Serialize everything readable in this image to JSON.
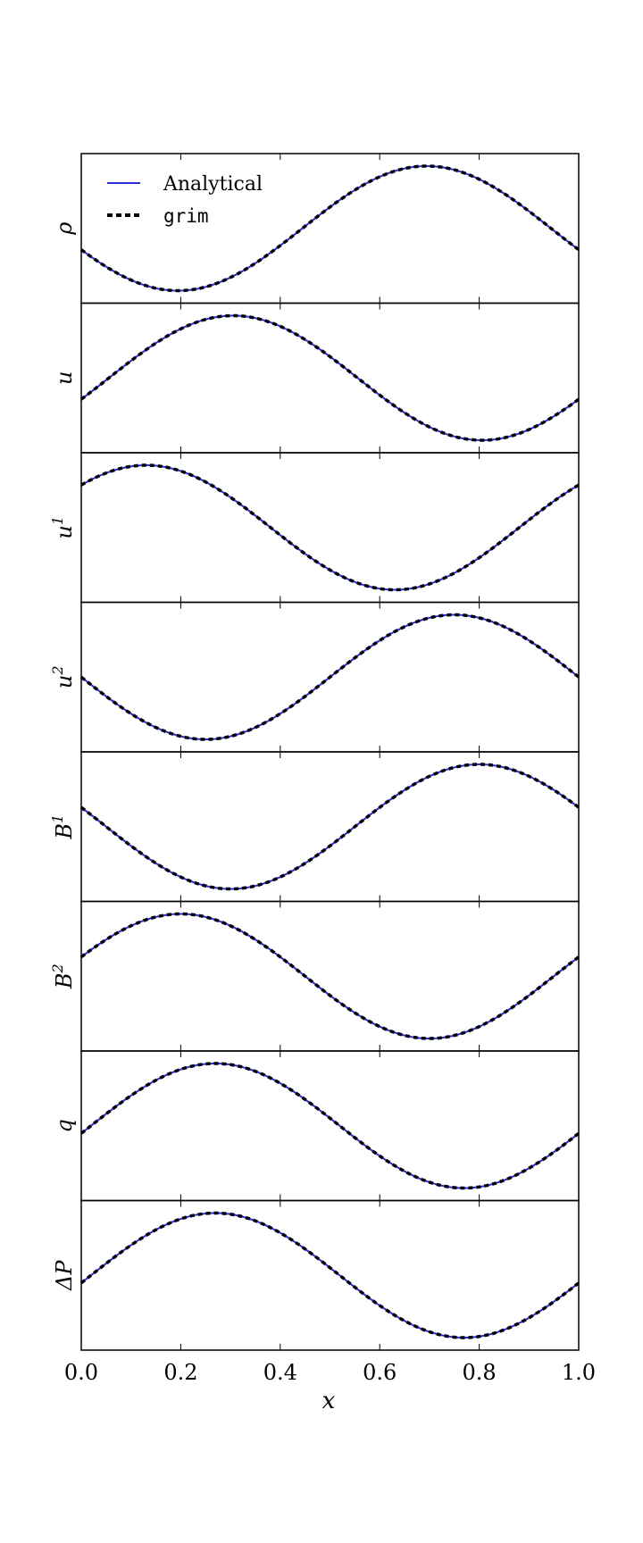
{
  "chart_data": {
    "type": "line",
    "xlabel": "x",
    "xlim": [
      0.0,
      1.0
    ],
    "x_ticks": [
      "0.0",
      "0.2",
      "0.4",
      "0.6",
      "0.8",
      "1.0"
    ],
    "x_tick_values": [
      0.0,
      0.2,
      0.4,
      0.6,
      0.8,
      1.0
    ],
    "legend": {
      "placement": "top-left",
      "entries": [
        {
          "label": "Analytical",
          "style": "solid",
          "color": "#2b2bdb"
        },
        {
          "label": "grim",
          "style": "dashed",
          "color": "#000000"
        }
      ]
    },
    "colors": {
      "analytical": "#2b2bdb",
      "grim": "#000000"
    },
    "panels": [
      {
        "ylabel": "ρ",
        "sup": "",
        "mean": 0,
        "amplitude": 1,
        "phase_deg": 200
      },
      {
        "ylabel": "u",
        "sup": "",
        "mean": 0,
        "amplitude": 1,
        "phase_deg": -20
      },
      {
        "ylabel": "u",
        "sup": "1",
        "mean": 0,
        "amplitude": 1,
        "phase_deg": 43
      },
      {
        "ylabel": "u",
        "sup": "2",
        "mean": 0,
        "amplitude": 1,
        "phase_deg": 180
      },
      {
        "ylabel": "B",
        "sup": "1",
        "mean": 0,
        "amplitude": 1,
        "phase_deg": 162
      },
      {
        "ylabel": "B",
        "sup": "2",
        "mean": 0,
        "amplitude": 1,
        "phase_deg": 18
      },
      {
        "ylabel": "q",
        "sup": "",
        "mean": 0,
        "amplitude": 1,
        "phase_deg": -7
      },
      {
        "ylabel": "ΔP",
        "sup": "",
        "mean": 0,
        "amplitude": 1,
        "phase_deg": -7
      }
    ],
    "series_note": "Each panel shows one sine period over x in [0,1]: y = mean + amplitude*sin(2*pi*x + phase); Analytical and grim overlap"
  }
}
